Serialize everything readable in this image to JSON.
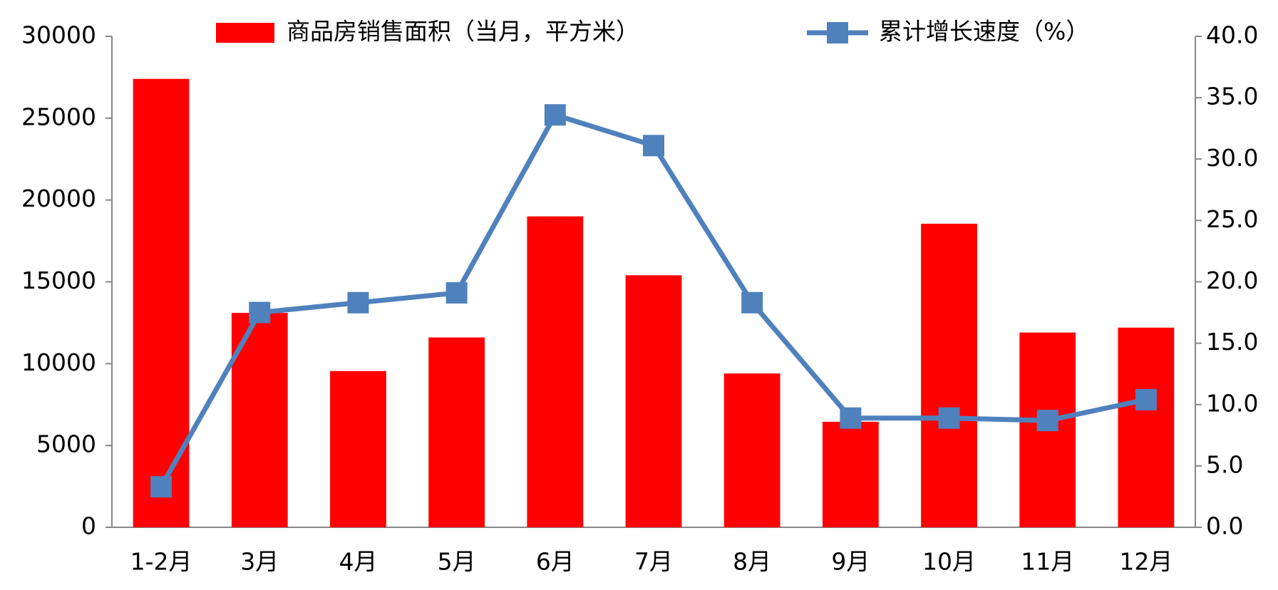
{
  "chart_data": {
    "type": "bar_line",
    "categories": [
      "1-2月",
      "3月",
      "4月",
      "5月",
      "6月",
      "7月",
      "8月",
      "9月",
      "10月",
      "11月",
      "12月"
    ],
    "series": [
      {
        "name": "商品房销售面积（当月，平方米）",
        "color": "#ff0000",
        "type": "bar",
        "values": [
          27400,
          13100,
          9550,
          11600,
          19000,
          15400,
          9400,
          6450,
          18550,
          11900,
          12200
        ]
      },
      {
        "name": "累计增长速度（%）",
        "color": "#4f81bd",
        "type": "line",
        "axis": "y2",
        "values": [
          3.3,
          17.5,
          18.3,
          19.1,
          33.6,
          31.1,
          18.3,
          8.9,
          8.9,
          8.7,
          10.4
        ]
      }
    ],
    "ylim": [
      0,
      30000
    ],
    "yticks": [
      0,
      5000,
      10000,
      15000,
      20000,
      25000,
      30000
    ],
    "y2lim": [
      0,
      40
    ],
    "y2ticks": [
      {
        "value": 0,
        "label": "0.0"
      },
      {
        "value": 5,
        "label": "5.0"
      },
      {
        "value": 10,
        "label": "10.0"
      },
      {
        "value": 15,
        "label": "15.0"
      },
      {
        "value": 20,
        "label": "20.0"
      },
      {
        "value": 25,
        "label": "25.0"
      },
      {
        "value": 30,
        "label": "30.0"
      },
      {
        "value": 35,
        "label": "35.0"
      },
      {
        "value": 40,
        "label": "40.0"
      }
    ],
    "grid": false,
    "legend": "top"
  }
}
